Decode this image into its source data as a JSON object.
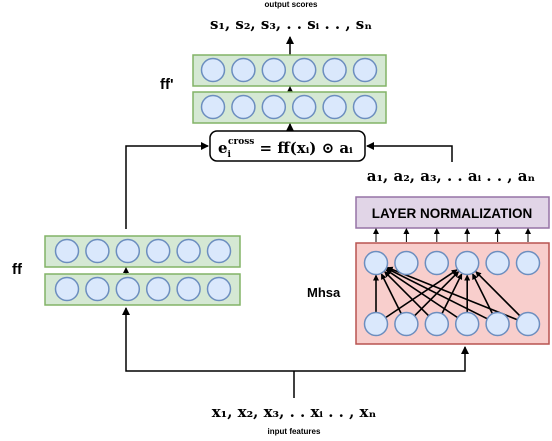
{
  "output": {
    "caption": "output scores",
    "scores_text": "s₁, s₂, s₃, . . sᵢ . . , sₙ"
  },
  "input": {
    "caption": "input features",
    "features_text": "x₁, x₂, x₃, . . xᵢ . . , xₙ"
  },
  "attention_weights_text": "a₁, a₂, a₃, . . aᵢ . . , aₙ",
  "fusion_box": {
    "e": "e",
    "sup": "cross",
    "sub": "i",
    "rest": " = ff(xᵢ) ⊙ aᵢ"
  },
  "labels": {
    "ff": "ff",
    "ff_prime": "ff'",
    "mhsa": "Mhsa",
    "layer_norm": "LAYER NORMALIZATION"
  },
  "colors": {
    "layer_fill": "#d5e8d4",
    "layer_stroke": "#82b366",
    "node_fill": "#dae8fc",
    "node_stroke": "#6c8ebf",
    "mhsa_fill": "#f8cecc",
    "mhsa_stroke": "#b85450",
    "norm_fill": "#e1d5e7",
    "norm_stroke": "#9673a6"
  }
}
